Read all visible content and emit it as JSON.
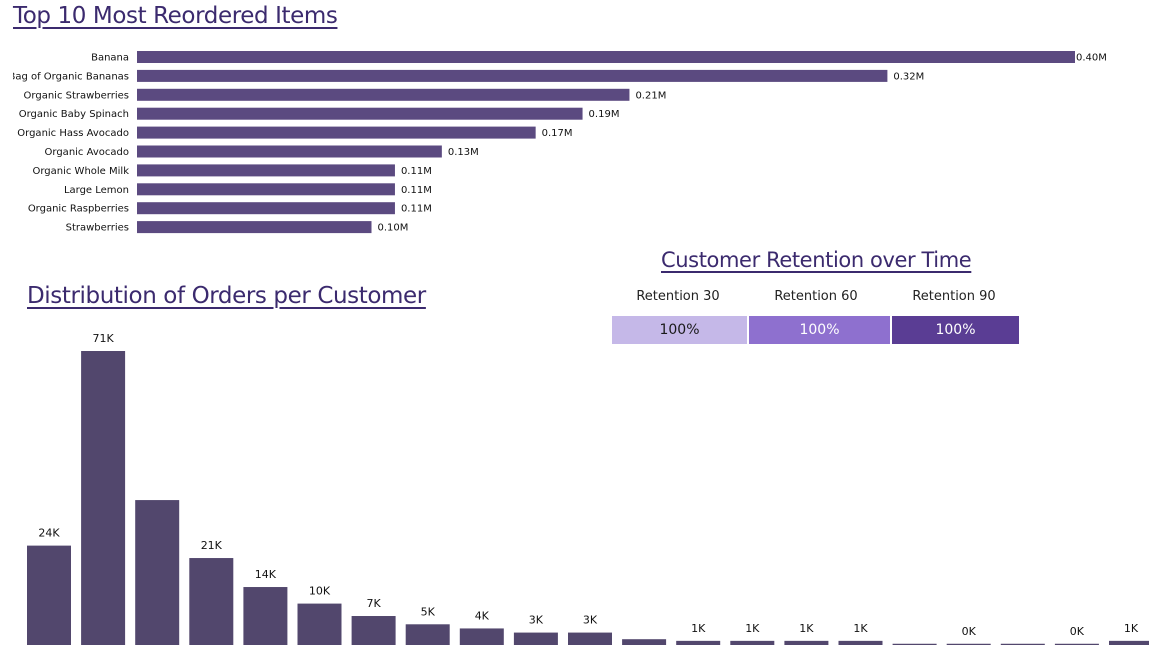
{
  "reorder_chart": {
    "title": "Top 10 Most Reordered Items",
    "chart_data": {
      "type": "bar",
      "orientation": "horizontal",
      "categories": [
        "Banana",
        "Bag of Organic Bananas",
        "Organic Strawberries",
        "Organic Baby Spinach",
        "Organic Hass Avocado",
        "Organic Avocado",
        "Organic Whole Milk",
        "Large Lemon",
        "Organic Raspberries",
        "Strawberries"
      ],
      "values": [
        0.4,
        0.32,
        0.21,
        0.19,
        0.17,
        0.13,
        0.11,
        0.11,
        0.11,
        0.1
      ],
      "value_labels": [
        "0.40M",
        "0.32M",
        "0.21M",
        "0.19M",
        "0.17M",
        "0.13M",
        "0.11M",
        "0.11M",
        "0.11M",
        "0.10M"
      ],
      "xlim": [
        0,
        0.4
      ],
      "grid": false,
      "bar_color": "#5b4a80"
    }
  },
  "distribution_chart": {
    "title": "Distribution of Orders per Customer",
    "chart_data": {
      "type": "bar",
      "values": [
        24,
        71,
        35,
        21,
        14,
        10,
        7,
        5,
        4,
        3,
        3,
        1.4,
        1,
        1,
        1,
        1,
        0.3,
        0.3,
        0.3,
        0.3,
        1
      ],
      "value_labels": [
        "24K",
        "71K",
        "",
        "21K",
        "14K",
        "10K",
        "7K",
        "5K",
        "4K",
        "3K",
        "3K",
        "",
        "1K",
        "1K",
        "1K",
        "1K",
        "",
        "0K",
        "",
        "0K",
        "1K"
      ],
      "ylim": [
        0,
        71
      ],
      "grid": false,
      "bar_color": "#52476d"
    }
  },
  "retention": {
    "title": "Customer Retention over Time",
    "columns": [
      {
        "header": "Retention 30",
        "value": "100%",
        "color": "#c5b8e8",
        "text_color": "#1a1a1a"
      },
      {
        "header": "Retention 60",
        "value": "100%",
        "color": "#8e70cf",
        "text_color": "#ffffff"
      },
      {
        "header": "Retention 90",
        "value": "100%",
        "color": "#5a3d94",
        "text_color": "#ffffff"
      }
    ]
  }
}
